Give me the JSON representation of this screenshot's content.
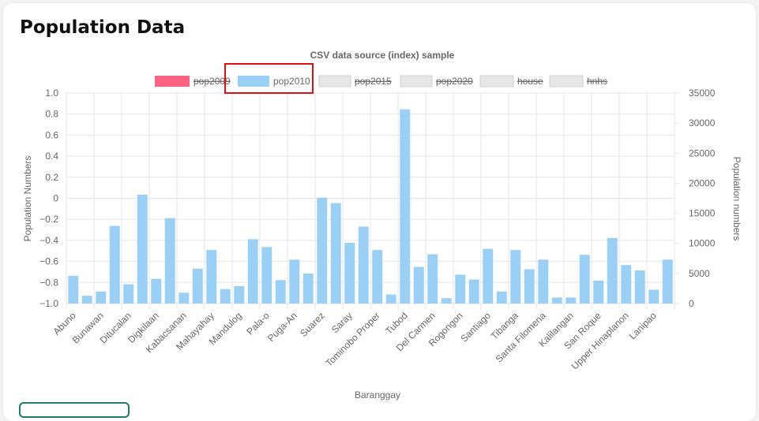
{
  "page": {
    "title": "Population Data"
  },
  "colors": {
    "pop2010": "#9ad0f5",
    "pop2009": "#ff6384",
    "hidden_legend": "#e6e6e6",
    "highlight": "#e01010",
    "grid": "#e6e6e6",
    "text": "#666666"
  },
  "chart_data": {
    "type": "bar",
    "title": "CSV data source (index) sample",
    "xlabel": "Baranggay",
    "ylabel_left": "Population Numbers",
    "ylabel_right": "Population numbers",
    "left_axis": {
      "range": [
        -1.0,
        1.0
      ],
      "ticks": [
        "1.0",
        "0.8",
        "0.6",
        "0.4",
        "0.2",
        "0",
        "−0.2",
        "−0.4",
        "−0.6",
        "−0.8",
        "−1.0"
      ]
    },
    "right_axis": {
      "range": [
        0,
        35000
      ],
      "ticks": [
        "35000",
        "30000",
        "25000",
        "20000",
        "15000",
        "10000",
        "5000",
        "0"
      ]
    },
    "grid": true,
    "legend": {
      "position": "top",
      "items": [
        {
          "label": "pop2009",
          "hidden": true,
          "color": "#ff6384"
        },
        {
          "label": "pop2010",
          "hidden": false,
          "color": "#9ad0f5"
        },
        {
          "label": "pop2015",
          "hidden": true,
          "color": "#e6e6e6"
        },
        {
          "label": "pop2020",
          "hidden": true,
          "color": "#e6e6e6"
        },
        {
          "label": "house",
          "hidden": true,
          "color": "#e6e6e6"
        },
        {
          "label": "hnhs",
          "hidden": true,
          "color": "#e6e6e6"
        }
      ]
    },
    "categories": [
      "Abuno",
      "",
      "Bunawan",
      "",
      "Ditucalan",
      "",
      "Digkilaan",
      "",
      "Kabacsanan",
      "",
      "Mahayahay",
      "",
      "Mandulog",
      "",
      "Pala-o",
      "",
      "Puga-An",
      "",
      "Suarez",
      "",
      "Saray",
      "",
      "Tominobo Proper",
      "",
      "Tubod",
      "",
      "Del Carmen",
      "",
      "Rogongon",
      "",
      "Santiago",
      "",
      "Tibanga",
      "",
      "Santa Filomena",
      "",
      "Kalilangan",
      "",
      "San Roque",
      "",
      "Upper Hinaplanon",
      "",
      "Lanipao",
      ""
    ],
    "series": [
      {
        "name": "pop2010",
        "axis": "right",
        "values": [
          4600,
          1300,
          2000,
          12900,
          3200,
          18100,
          4100,
          14200,
          1800,
          5800,
          8900,
          2400,
          2900,
          10700,
          9400,
          3900,
          7300,
          5000,
          17600,
          16700,
          10100,
          12800,
          8900,
          1500,
          32300,
          6100,
          8200,
          900,
          4800,
          4000,
          9100,
          2000,
          8900,
          5700,
          7300,
          1000,
          1000,
          8100,
          3800,
          10900,
          6400,
          5500,
          2300,
          7300
        ]
      }
    ]
  }
}
